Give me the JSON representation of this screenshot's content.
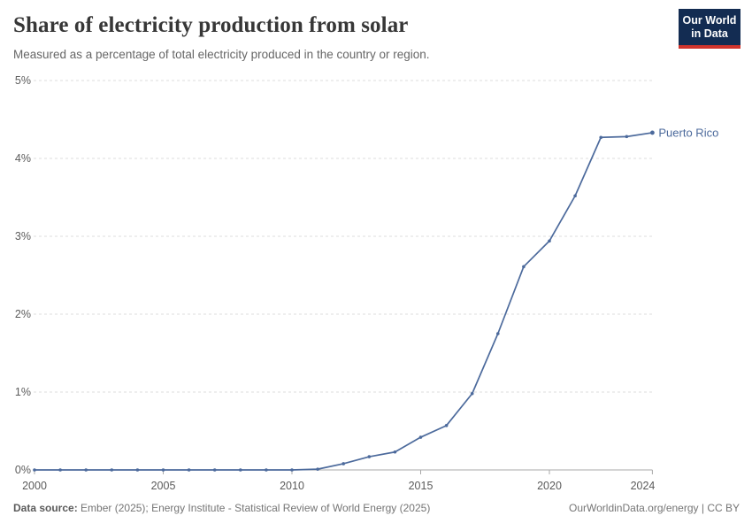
{
  "header": {
    "title": "Share of electricity production from solar",
    "subtitle": "Measured as a percentage of total electricity produced in the country or region.",
    "logo": {
      "line1": "Our World",
      "line2": "in Data"
    }
  },
  "chart_data": {
    "type": "line",
    "title": "Share of electricity production from solar",
    "x": [
      2000,
      2001,
      2002,
      2003,
      2004,
      2005,
      2006,
      2007,
      2008,
      2009,
      2010,
      2011,
      2012,
      2013,
      2014,
      2015,
      2016,
      2017,
      2018,
      2019,
      2020,
      2021,
      2022,
      2023,
      2024
    ],
    "series": [
      {
        "name": "Puerto Rico",
        "values": [
          0,
          0,
          0,
          0,
          0,
          0,
          0,
          0,
          0,
          0,
          0,
          0.01,
          0.08,
          0.17,
          0.23,
          0.42,
          0.57,
          0.98,
          1.75,
          2.61,
          2.94,
          3.52,
          4.27,
          4.28,
          4.33
        ]
      }
    ],
    "unit": "%",
    "xlim": [
      2000,
      2024
    ],
    "ylim": [
      0,
      5
    ],
    "yticks": [
      {
        "value": 0,
        "label": "0%"
      },
      {
        "value": 1,
        "label": "1%"
      },
      {
        "value": 2,
        "label": "2%"
      },
      {
        "value": 3,
        "label": "3%"
      },
      {
        "value": 4,
        "label": "4%"
      },
      {
        "value": 5,
        "label": "5%"
      }
    ],
    "xticks": [
      {
        "value": 2000,
        "label": "2000"
      },
      {
        "value": 2005,
        "label": "2005"
      },
      {
        "value": 2010,
        "label": "2010"
      },
      {
        "value": 2015,
        "label": "2015"
      },
      {
        "value": 2020,
        "label": "2020"
      },
      {
        "value": 2024,
        "label": "2024"
      }
    ],
    "grid": true,
    "legend_position": "end-of-line-label"
  },
  "footer": {
    "datasource_label": "Data source:",
    "datasource": "Ember (2025); Energy Institute - Statistical Review of World Energy (2025)",
    "attribution": "OurWorldinData.org/energy | CC BY"
  },
  "colors": {
    "line-color": "#4C6A9C",
    "grid-color": "#dedede",
    "axis-color": "#a8a8a8",
    "tick-label-color": "#5b5b5b",
    "title-color": "#373737",
    "subtitle-color": "#666666",
    "footer-color": "#757575",
    "footer-label-color": "#5b5b5b",
    "logo-bg": "#132c52",
    "logo-stripe": "#d0342c"
  }
}
